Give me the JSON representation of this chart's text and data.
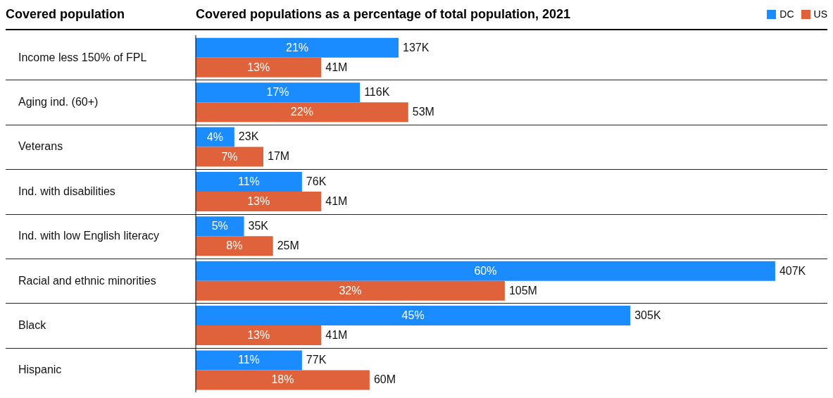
{
  "chart_data": {
    "type": "bar",
    "orientation": "horizontal",
    "title": "Covered populations as a percentage of total population, 2021",
    "ylabel": "Covered population",
    "categories": [
      "Income less 150% of FPL",
      "Aging ind. (60+)",
      "Veterans",
      "Ind. with disabilities",
      "Ind. with low English literacy",
      "Racial and ethnic minorities",
      "Black",
      "Hispanic"
    ],
    "series": [
      {
        "name": "DC",
        "color": "#1a8cff",
        "values": [
          21,
          17,
          4,
          11,
          5,
          60,
          45,
          11
        ],
        "value_labels": [
          "21%",
          "17%",
          "4%",
          "11%",
          "5%",
          "60%",
          "45%",
          "11%"
        ]
      },
      {
        "name": "US",
        "color": "#e0623a",
        "values": [
          13,
          22,
          7,
          13,
          8,
          32,
          13,
          18
        ],
        "value_labels": [
          "13%",
          "22%",
          "7%",
          "13%",
          "8%",
          "32%",
          "13%",
          "18%"
        ]
      }
    ],
    "annotations": [
      {
        "text": "137K",
        "x": 21,
        "y": "Income less 150% of FPL"
      },
      {
        "text": "41M",
        "x": 13,
        "y": "Income less 150% of FPL"
      },
      {
        "text": "116K",
        "x": 17,
        "y": "Aging ind. (60+)"
      },
      {
        "text": "53M",
        "x": 22,
        "y": "Aging ind. (60+)"
      },
      {
        "text": "23K",
        "x": 4,
        "y": "Veterans"
      },
      {
        "text": "17M",
        "x": 7,
        "y": "Veterans"
      },
      {
        "text": "76K",
        "x": 11,
        "y": "Ind. with disabilities"
      },
      {
        "text": "41M",
        "x": 13,
        "y": "Ind. with disabilities"
      },
      {
        "text": "35K",
        "x": 5,
        "y": "Ind. with low English literacy"
      },
      {
        "text": "25M",
        "x": 8,
        "y": "Ind. with low English literacy"
      },
      {
        "text": "407K",
        "x": 60,
        "y": "Racial and ethnic minorities"
      },
      {
        "text": "105M",
        "x": 32,
        "y": "Racial and ethnic minorities"
      },
      {
        "text": "305K",
        "x": 45,
        "y": "Black"
      },
      {
        "text": "41M",
        "x": 13,
        "y": "Black"
      },
      {
        "text": "77K",
        "x": 11,
        "y": "Hispanic"
      },
      {
        "text": "60M",
        "x": 18,
        "y": "Hispanic"
      }
    ],
    "grid": "y",
    "legend": "top right"
  }
}
